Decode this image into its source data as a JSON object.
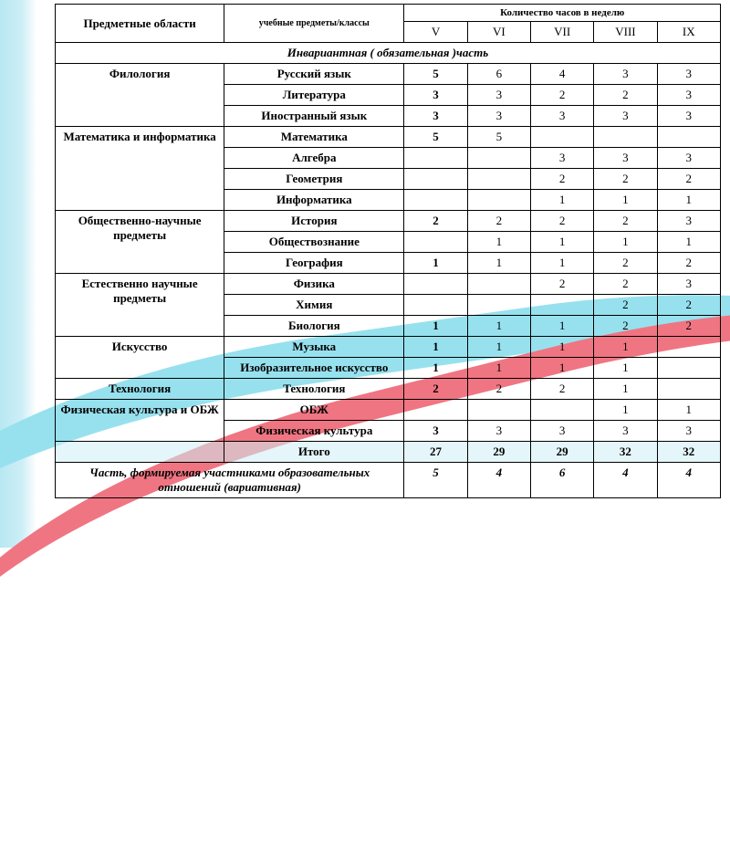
{
  "colors": {
    "cyan": "#97e1ef",
    "red": "#f07582",
    "sideband": "#cdeef6",
    "border": "#000000",
    "text": "#000000"
  },
  "typography": {
    "base_fontsize": 13,
    "small_fontsize": 10,
    "family": "Times New Roman"
  },
  "header": {
    "area": "Предметные области",
    "subjects": "учебные предметы/классы",
    "hours": "Количество часов в неделю",
    "grades": [
      "V",
      "VI",
      "VII",
      "VIII",
      "IX"
    ]
  },
  "section_invariant": "Инвариантная ( обязательная )часть",
  "areas": [
    {
      "name": "Филология",
      "subjects": [
        {
          "name": "Русский язык",
          "bold_first": true,
          "hours": [
            "5",
            "6",
            "4",
            "3",
            "3"
          ]
        },
        {
          "name": "Литература",
          "bold_first": true,
          "hours": [
            "3",
            "3",
            "2",
            "2",
            "3"
          ]
        },
        {
          "name": "Иностранный язык",
          "bold_first": true,
          "hours": [
            "3",
            "3",
            "3",
            "3",
            "3"
          ]
        }
      ]
    },
    {
      "name": "Математика и информатика",
      "subjects": [
        {
          "name": "Математика",
          "bold_first": true,
          "hours": [
            "5",
            "5",
            "",
            "",
            ""
          ]
        },
        {
          "name": "Алгебра",
          "hours": [
            "",
            "",
            "3",
            "3",
            "3"
          ]
        },
        {
          "name": "Геометрия",
          "hours": [
            "",
            "",
            "2",
            "2",
            "2"
          ]
        },
        {
          "name": "Информатика",
          "hours": [
            "",
            "",
            "1",
            "1",
            "1"
          ]
        }
      ]
    },
    {
      "name": "Общественно-научные предметы",
      "subjects": [
        {
          "name": "История",
          "bold_first": true,
          "hours": [
            "2",
            "2",
            "2",
            "2",
            "3"
          ]
        },
        {
          "name": "Обществознание",
          "hours": [
            "",
            "1",
            "1",
            "1",
            "1"
          ]
        },
        {
          "name": "География",
          "bold_first": true,
          "hours": [
            "1",
            "1",
            "1",
            "2",
            "2"
          ]
        }
      ]
    },
    {
      "name": "Естественно научные предметы",
      "subjects": [
        {
          "name": "Физика",
          "hours": [
            "",
            "",
            "2",
            "2",
            "3"
          ]
        },
        {
          "name": "Химия",
          "hours": [
            "",
            "",
            "",
            "2",
            "2"
          ]
        },
        {
          "name": "Биология",
          "bold_first": true,
          "hours": [
            "1",
            "1",
            "1",
            "2",
            "2"
          ]
        }
      ]
    },
    {
      "name": "Искусство",
      "subjects": [
        {
          "name": "Музыка",
          "bold_first": true,
          "hours": [
            "1",
            "1",
            "1",
            "1",
            ""
          ]
        },
        {
          "name": "Изобразительное искусство",
          "bold_first": true,
          "hours": [
            "1",
            "1",
            "1",
            "1",
            ""
          ]
        }
      ]
    },
    {
      "name": "Технология",
      "subjects": [
        {
          "name": "Технология",
          "bold_first": true,
          "hours": [
            "2",
            "2",
            "2",
            "1",
            ""
          ]
        }
      ]
    },
    {
      "name": "Физическая культура и ОБЖ",
      "subjects": [
        {
          "name": "ОБЖ",
          "hours": [
            "",
            "",
            "",
            "1",
            "1"
          ]
        },
        {
          "name": "Физическая культура",
          "bold_first": true,
          "hours": [
            "3",
            "3",
            "3",
            "3",
            "3"
          ]
        }
      ]
    }
  ],
  "total": {
    "label": "Итого",
    "hours": [
      "27",
      "29",
      "29",
      "32",
      "32"
    ]
  },
  "variative": {
    "label": "Часть, формируемая участниками образовательных отношений (вариативная)",
    "hours": [
      "5",
      "4",
      "6",
      "4",
      "4"
    ]
  }
}
